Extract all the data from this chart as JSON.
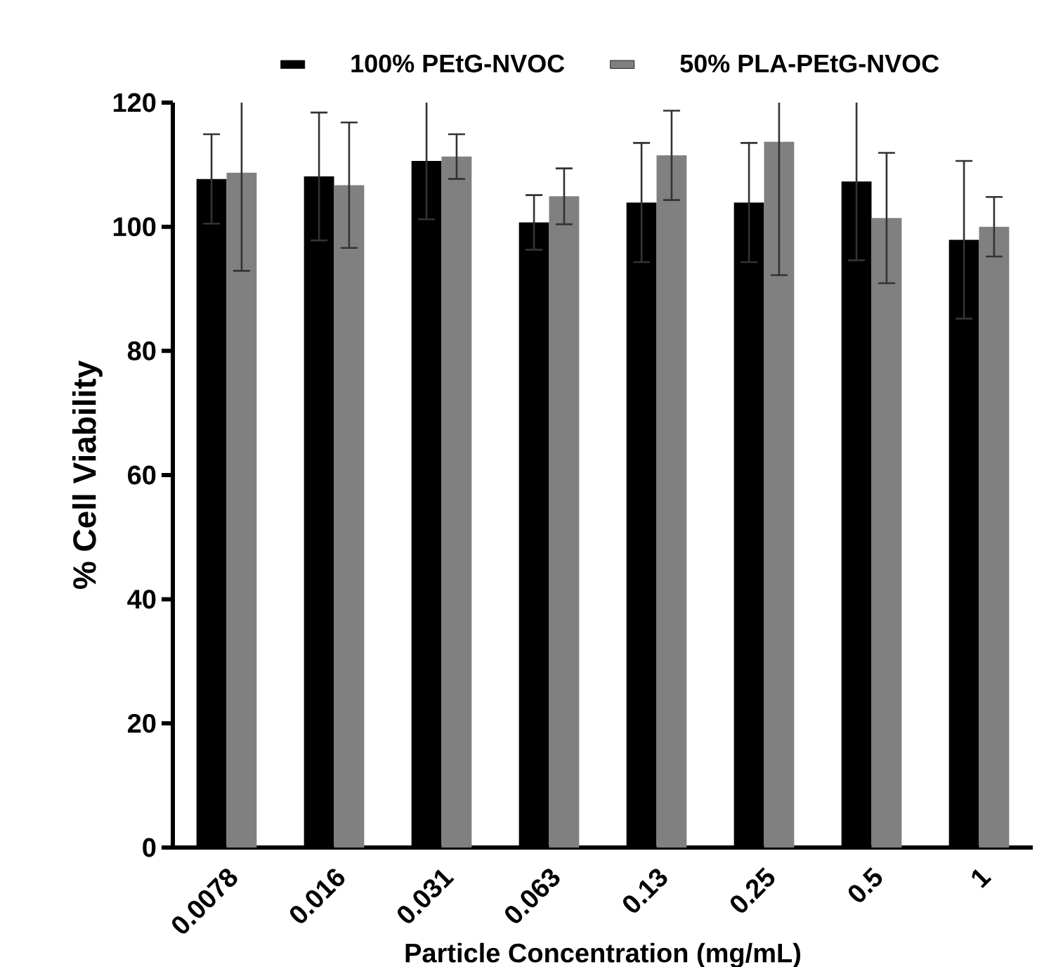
{
  "chart_data": {
    "type": "bar",
    "xlabel": "Particle Concentration (mg/mL)",
    "ylabel": "% Cell Viability",
    "categories": [
      "0.0078",
      "0.016",
      "0.031",
      "0.063",
      "0.13",
      "0.25",
      "0.5",
      "1"
    ],
    "series": [
      {
        "name": "100% PEtG-NVOC",
        "color": "#000000",
        "values": [
          107.7,
          108.1,
          110.6,
          100.7,
          103.9,
          103.9,
          107.3,
          97.9
        ],
        "errors": [
          7.2,
          10.3,
          9.4,
          4.4,
          9.6,
          9.6,
          12.7,
          12.7
        ]
      },
      {
        "name": "50% PLA-PEtG-NVOC",
        "color": "#808080",
        "values": [
          108.7,
          106.7,
          111.3,
          104.9,
          111.5,
          113.7,
          101.4,
          100
        ],
        "errors": [
          [
            92.9,
            120
          ],
          10.1,
          3.6,
          4.5,
          7.2,
          [
            92.2,
            120
          ],
          10.5,
          4.8
        ]
      }
    ],
    "ylim": [
      0,
      120
    ],
    "yticks": [
      0,
      20,
      40,
      60,
      80,
      100,
      120
    ],
    "legend": "top",
    "grid": false
  }
}
